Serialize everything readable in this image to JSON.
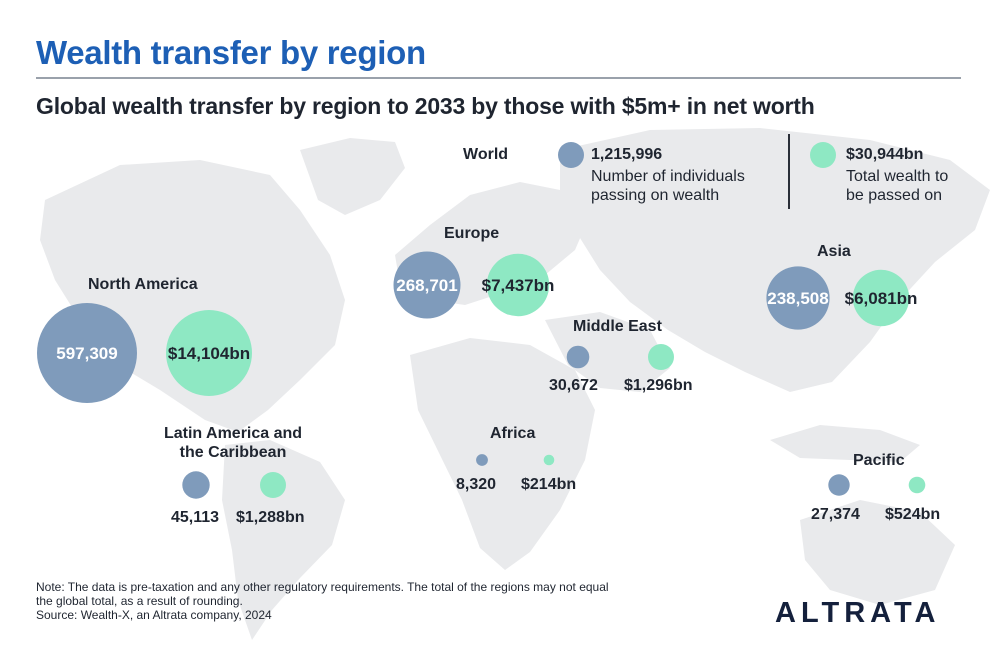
{
  "header": {
    "title": "Wealth transfer by region",
    "subtitle": "Global wealth transfer by region to 2033 by those with $5m+ in net worth"
  },
  "legend": {
    "world_label": "World",
    "individuals_value": "1,215,996",
    "individuals_desc_1": "Number of individuals",
    "individuals_desc_2": "passing on wealth",
    "wealth_value": "$30,944bn",
    "wealth_desc_1": "Total wealth to",
    "wealth_desc_2": "be passed on"
  },
  "colors": {
    "individuals": "#7f9bbb",
    "wealth": "#8ee8c3",
    "title": "#1d5fb5",
    "map": "#e9eaec"
  },
  "chart_data": {
    "type": "bubble",
    "title": "Global wealth transfer by region to 2033 by those with $5m+ in net worth",
    "series": [
      {
        "name": "Number of individuals passing on wealth",
        "color": "#7f9bbb"
      },
      {
        "name": "Total wealth to be passed on",
        "color": "#8ee8c3"
      }
    ],
    "world": {
      "individuals": 1215996,
      "wealth_bn": 30944
    },
    "regions": [
      {
        "key": "north_america",
        "name": "North America",
        "individuals": 597309,
        "individuals_label": "597,309",
        "wealth_bn": 14104,
        "wealth_label": "$14,104bn"
      },
      {
        "key": "europe",
        "name": "Europe",
        "individuals": 268701,
        "individuals_label": "268,701",
        "wealth_bn": 7437,
        "wealth_label": "$7,437bn"
      },
      {
        "key": "asia",
        "name": "Asia",
        "individuals": 238508,
        "individuals_label": "238,508",
        "wealth_bn": 6081,
        "wealth_label": "$6,081bn"
      },
      {
        "key": "middle_east",
        "name": "Middle East",
        "individuals": 30672,
        "individuals_label": "30,672",
        "wealth_bn": 1296,
        "wealth_label": "$1,296bn"
      },
      {
        "key": "latin_america",
        "name": "Latin America and the Caribbean",
        "individuals": 45113,
        "individuals_label": "45,113",
        "wealth_bn": 1288,
        "wealth_label": "$1,288bn"
      },
      {
        "key": "africa",
        "name": "Africa",
        "individuals": 8320,
        "individuals_label": "8,320",
        "wealth_bn": 214,
        "wealth_label": "$214bn"
      },
      {
        "key": "pacific",
        "name": "Pacific",
        "individuals": 27374,
        "individuals_label": "27,374",
        "wealth_bn": 524,
        "wealth_label": "$524bn"
      }
    ]
  },
  "footer": {
    "note_1": "Note: The data is pre-taxation and any other regulatory requirements. The total of the regions may not equal",
    "note_2": "the global total, as a result of rounding.",
    "source": "Source: Wealth-X, an Altrata company, 2024",
    "logo": "ALTRATA"
  }
}
